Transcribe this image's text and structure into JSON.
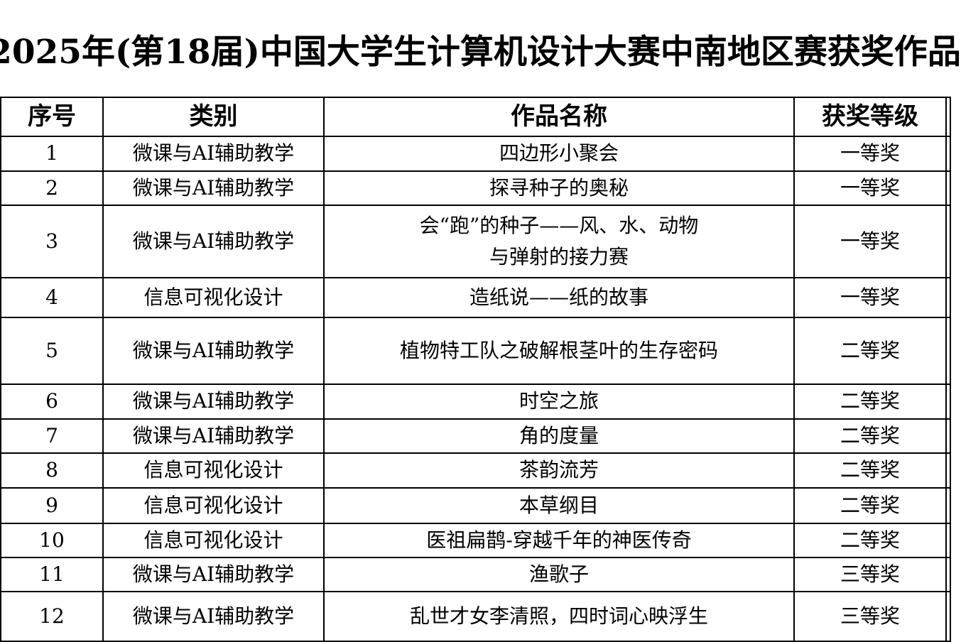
{
  "title": "2025年(第18届)中国大学生计算机设计大赛中南地区赛获奖作品",
  "table": {
    "headers": [
      "序号",
      "类别",
      "作品名称",
      "获奖等级"
    ],
    "rows": [
      {
        "no": "1",
        "category": "微课与AI辅助教学",
        "work": "四边形小聚会",
        "award": "一等奖"
      },
      {
        "no": "2",
        "category": "微课与AI辅助教学",
        "work": "探寻种子的奥秘",
        "award": "一等奖"
      },
      {
        "no": "3",
        "category": "微课与AI辅助教学",
        "work": "会“跑”的种子——风、水、动物\n与弹射的接力赛",
        "award": "一等奖"
      },
      {
        "no": "4",
        "category": "信息可视化设计",
        "work": "造纸说——纸的故事",
        "award": "一等奖"
      },
      {
        "no": "5",
        "category": "微课与AI辅助教学",
        "work": "植物特工队之破解根茎叶的生存密码",
        "award": "二等奖"
      },
      {
        "no": "6",
        "category": "微课与AI辅助教学",
        "work": "时空之旅",
        "award": "二等奖"
      },
      {
        "no": "7",
        "category": "微课与AI辅助教学",
        "work": "角的度量",
        "award": "二等奖"
      },
      {
        "no": "8",
        "category": "信息可视化设计",
        "work": "茶韵流芳",
        "award": "二等奖"
      },
      {
        "no": "9",
        "category": "信息可视化设计",
        "work": "本草纲目",
        "award": "二等奖"
      },
      {
        "no": "10",
        "category": "信息可视化设计",
        "work": "医祖扁鹊-穿越千年的神医传奇",
        "award": "二等奖"
      },
      {
        "no": "11",
        "category": "微课与AI辅助教学",
        "work": "渔歌子",
        "award": "三等奖"
      },
      {
        "no": "12",
        "category": "微课与AI辅助教学",
        "work": "乱世才女李清照，四时词心映浮生",
        "award": "三等奖"
      }
    ]
  }
}
